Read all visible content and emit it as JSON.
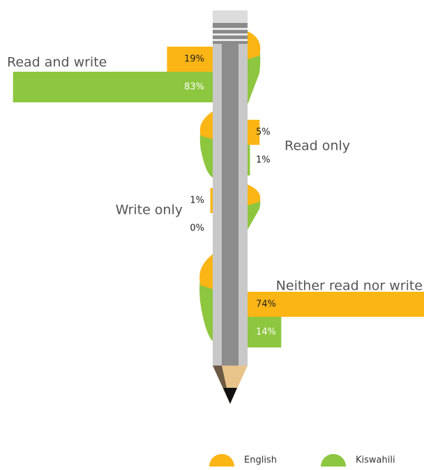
{
  "chart_data": {
    "type": "bar",
    "categories": [
      "Read and write",
      "Read only",
      "Write only",
      "Neither read nor write"
    ],
    "series": [
      {
        "name": "English",
        "color": "#fbb515",
        "values": [
          19,
          5,
          1,
          74
        ],
        "value_labels": [
          "19%",
          "5%",
          "1%",
          "74%"
        ]
      },
      {
        "name": "Kiswahili",
        "color": "#8dc63f",
        "values": [
          83,
          1,
          0,
          14
        ],
        "value_labels": [
          "83%",
          "1%",
          "0%",
          "14%"
        ]
      }
    ]
  }
}
